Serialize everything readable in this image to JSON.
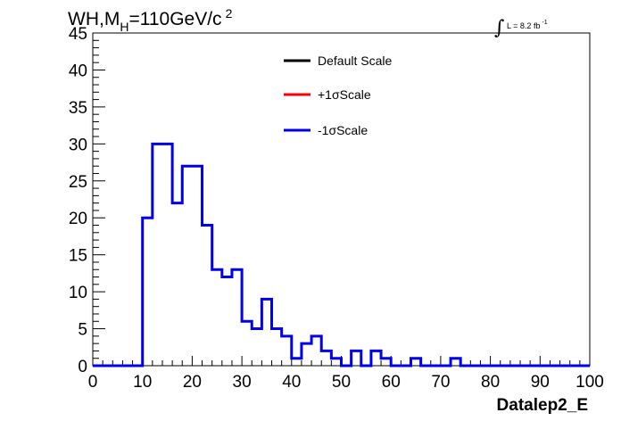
{
  "chart_data": {
    "type": "histogram",
    "title": {
      "prefix": "WH,M",
      "subscript": "H",
      "value": "=110GeV/c",
      "superscript": "2"
    },
    "luminosity": {
      "integral_symbol": "∫",
      "text": "L = 8.2 fb",
      "superscript": "-1"
    },
    "xlabel": "Datalep2_E",
    "ylabel": "",
    "xlim": [
      0,
      100
    ],
    "ylim": [
      0,
      45
    ],
    "x_ticks": [
      0,
      10,
      20,
      30,
      40,
      50,
      60,
      70,
      80,
      90,
      100
    ],
    "y_ticks": [
      0,
      5,
      10,
      15,
      20,
      25,
      30,
      35,
      40,
      45
    ],
    "bin_width": 2,
    "bin_edges_start": 0,
    "legend": [
      {
        "name": "Default Scale",
        "color": "#000000"
      },
      {
        "name": "+1σScale",
        "color": "#ff0000"
      },
      {
        "name": "-1σScale",
        "color": "#0000ee"
      }
    ],
    "series": [
      {
        "name": "-1σScale",
        "color": "#0000ee",
        "values": [
          0,
          0,
          0,
          0,
          0,
          20,
          30,
          30,
          22,
          27,
          27,
          19,
          13,
          12,
          13,
          6,
          5,
          9,
          5,
          4,
          1,
          3,
          4,
          2,
          1,
          0,
          2,
          0,
          2,
          1,
          0,
          0,
          1,
          0,
          0,
          0,
          1,
          0,
          0,
          0,
          0,
          0,
          0,
          0,
          0,
          0,
          0,
          0,
          0,
          0
        ]
      }
    ]
  }
}
